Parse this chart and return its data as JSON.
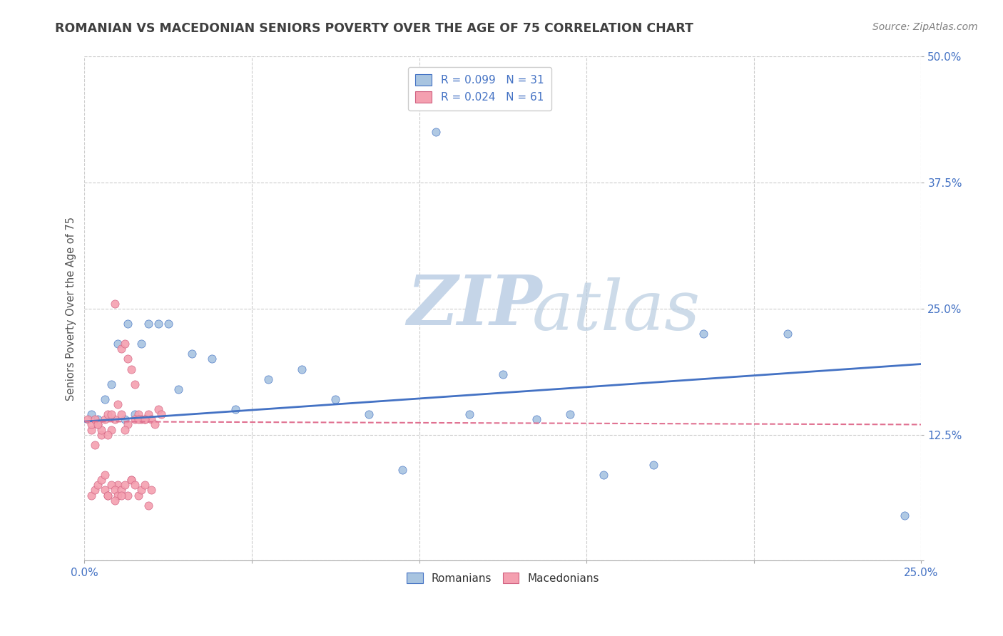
{
  "title": "ROMANIAN VS MACEDONIAN SENIORS POVERTY OVER THE AGE OF 75 CORRELATION CHART",
  "source": "Source: ZipAtlas.com",
  "ylabel": "Seniors Poverty Over the Age of 75",
  "xlim": [
    0,
    0.25
  ],
  "ylim": [
    0,
    0.5
  ],
  "xticks": [
    0.0,
    0.05,
    0.1,
    0.15,
    0.2,
    0.25
  ],
  "yticks": [
    0.0,
    0.125,
    0.25,
    0.375,
    0.5
  ],
  "xtick_labels": [
    "0.0%",
    "",
    "",
    "",
    "",
    "25.0%"
  ],
  "ytick_labels": [
    "",
    "12.5%",
    "25.0%",
    "37.5%",
    "50.0%"
  ],
  "r_romanian": 0.099,
  "n_romanian": 31,
  "r_macedonian": 0.024,
  "n_macedonian": 61,
  "romanian_color": "#a8c4e0",
  "macedonian_color": "#f4a0b0",
  "trend_romanian_color": "#4472c4",
  "trend_macedonian_color": "#e07090",
  "legend_text_color": "#4472c4",
  "background_color": "#ffffff",
  "grid_color": "#cccccc",
  "title_color": "#404040",
  "source_color": "#808080",
  "romanian_x": [
    0.002,
    0.004,
    0.006,
    0.008,
    0.01,
    0.012,
    0.013,
    0.015,
    0.017,
    0.019,
    0.022,
    0.025,
    0.028,
    0.032,
    0.038,
    0.045,
    0.055,
    0.065,
    0.075,
    0.085,
    0.095,
    0.105,
    0.115,
    0.125,
    0.135,
    0.145,
    0.155,
    0.17,
    0.185,
    0.21,
    0.245
  ],
  "romanian_y": [
    0.145,
    0.14,
    0.16,
    0.175,
    0.215,
    0.14,
    0.235,
    0.145,
    0.215,
    0.235,
    0.235,
    0.235,
    0.17,
    0.205,
    0.2,
    0.15,
    0.18,
    0.19,
    0.16,
    0.145,
    0.09,
    0.425,
    0.145,
    0.185,
    0.14,
    0.145,
    0.085,
    0.095,
    0.225,
    0.225,
    0.045
  ],
  "macedonian_x": [
    0.001,
    0.002,
    0.003,
    0.004,
    0.005,
    0.006,
    0.007,
    0.008,
    0.009,
    0.01,
    0.011,
    0.012,
    0.013,
    0.014,
    0.015,
    0.016,
    0.017,
    0.018,
    0.019,
    0.02,
    0.021,
    0.022,
    0.023,
    0.005,
    0.007,
    0.009,
    0.011,
    0.013,
    0.015,
    0.002,
    0.003,
    0.004,
    0.006,
    0.008,
    0.01,
    0.012,
    0.014,
    0.016,
    0.018,
    0.002,
    0.003,
    0.004,
    0.005,
    0.006,
    0.007,
    0.008,
    0.009,
    0.01,
    0.011,
    0.012,
    0.013,
    0.014,
    0.015,
    0.016,
    0.017,
    0.018,
    0.019,
    0.02,
    0.007,
    0.009,
    0.011
  ],
  "macedonian_y": [
    0.14,
    0.13,
    0.115,
    0.135,
    0.125,
    0.14,
    0.145,
    0.13,
    0.255,
    0.155,
    0.21,
    0.215,
    0.2,
    0.19,
    0.175,
    0.145,
    0.14,
    0.14,
    0.145,
    0.14,
    0.135,
    0.15,
    0.145,
    0.13,
    0.125,
    0.14,
    0.145,
    0.135,
    0.14,
    0.135,
    0.14,
    0.135,
    0.07,
    0.145,
    0.075,
    0.13,
    0.08,
    0.14,
    0.14,
    0.065,
    0.07,
    0.075,
    0.08,
    0.085,
    0.065,
    0.075,
    0.07,
    0.065,
    0.07,
    0.075,
    0.065,
    0.08,
    0.075,
    0.065,
    0.07,
    0.075,
    0.055,
    0.07,
    0.065,
    0.06,
    0.065
  ],
  "trend_rom_x0": 0.0,
  "trend_rom_x1": 0.25,
  "trend_rom_y0": 0.138,
  "trend_rom_y1": 0.195,
  "trend_mac_x0": 0.0,
  "trend_mac_x1": 0.25,
  "trend_mac_y0": 0.138,
  "trend_mac_y1": 0.135
}
